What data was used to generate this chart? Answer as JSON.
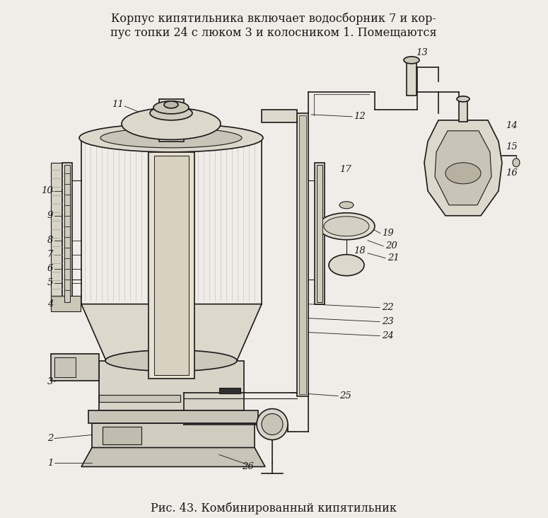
{
  "title_top_line1": "Корпус кипятильника включает водосборник 7 и кор-",
  "title_top_line2": "пус топки 24 с люком 3 и колосником 1. Помещаются",
  "caption": "Рис. 43. Комбинированный кипятильник",
  "bg_color": "#f0ede8",
  "line_color": "#1a1a1a",
  "fill_light": "#e8e4dc",
  "fill_medium": "#d0ccc0",
  "fill_dark": "#a09888",
  "title_fontsize": 11.5,
  "caption_fontsize": 11.5,
  "label_fontsize": 9.5
}
